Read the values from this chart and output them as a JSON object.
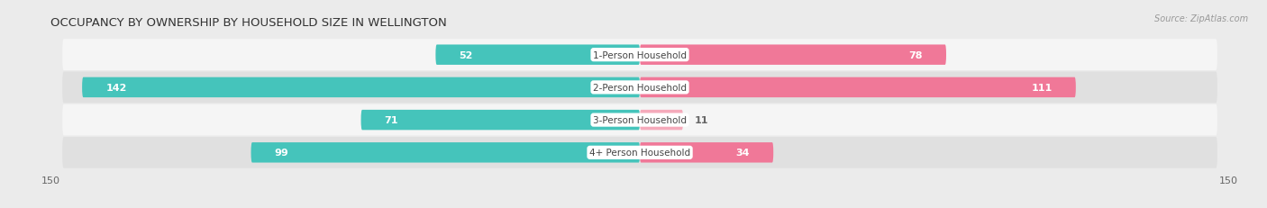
{
  "title": "OCCUPANCY BY OWNERSHIP BY HOUSEHOLD SIZE IN WELLINGTON",
  "source": "Source: ZipAtlas.com",
  "categories": [
    "1-Person Household",
    "2-Person Household",
    "3-Person Household",
    "4+ Person Household"
  ],
  "owner_values": [
    52,
    142,
    71,
    99
  ],
  "renter_values": [
    78,
    111,
    11,
    34
  ],
  "owner_color": "#45C4BB",
  "renter_color": "#F07898",
  "renter_color_light": "#F5AABB",
  "axis_max": 150,
  "bar_height": 0.62,
  "bg_color": "#ebebeb",
  "row_bg_light": "#f5f5f5",
  "row_bg_dark": "#e0e0e0",
  "label_color_inside": "#ffffff",
  "label_color_outside": "#666666",
  "center_label_bg": "#ffffff",
  "title_fontsize": 9.5,
  "source_fontsize": 7,
  "tick_fontsize": 8,
  "bar_label_fontsize": 8,
  "category_fontsize": 7.5
}
